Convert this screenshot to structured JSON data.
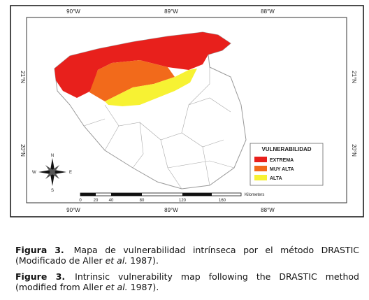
{
  "map": {
    "lon_labels": [
      "90°W",
      "89°W",
      "88°W"
    ],
    "lat_labels": [
      "21°N",
      "20°N"
    ],
    "legend": {
      "title": "VULNERABILIDAD",
      "items": [
        {
          "label": "EXTREMA",
          "color": "#e8201c"
        },
        {
          "label": "MUY ALTA",
          "color": "#f26a1b"
        },
        {
          "label": "ALTA",
          "color": "#f7f233"
        }
      ]
    },
    "scale": {
      "ticks": [
        "0",
        "20",
        "40",
        "80",
        "120",
        "160"
      ],
      "unit": "Kilometers"
    },
    "compass": {
      "n": "N",
      "s": "S",
      "e": "E",
      "w": "W"
    }
  },
  "captions": [
    {
      "label": "Figura 3.",
      "before": "Mapa de vulnerabilidad intrínseca por el método DRASTIC (Modificado de Aller",
      "italic": "et al.",
      "after": "1987)."
    },
    {
      "label": "Figure 3.",
      "before": "Intrinsic vulnerability map following the DRASTIC method (modified from Aller",
      "italic": "et al.",
      "after": "1987)."
    }
  ]
}
